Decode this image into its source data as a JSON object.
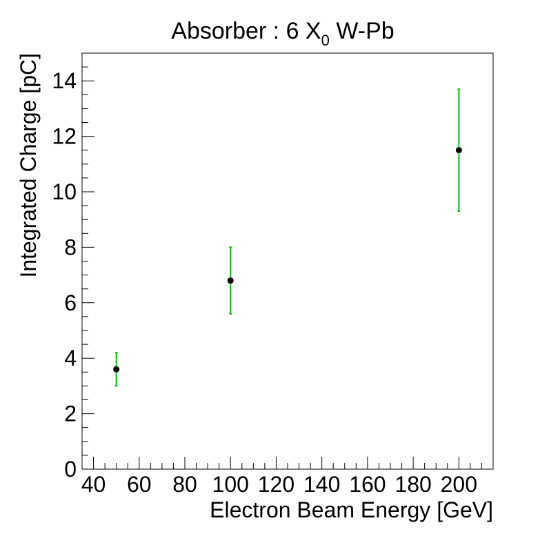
{
  "chart_data": {
    "type": "scatter",
    "title": {
      "main": "Absorber : 6 X",
      "subscript": "0",
      "suffix": " W-Pb"
    },
    "xlabel": "Electron Beam Energy [GeV]",
    "ylabel": "Integrated Charge [pC]",
    "xlim": [
      35,
      215
    ],
    "ylim": [
      0,
      15
    ],
    "x_ticks": [
      40,
      60,
      80,
      100,
      120,
      140,
      160,
      180,
      200
    ],
    "y_ticks": [
      0,
      2,
      4,
      6,
      8,
      10,
      12,
      14
    ],
    "grid": false,
    "series": [
      {
        "points": [
          {
            "x": 50,
            "y": 3.6,
            "y_err_low": 3.0,
            "y_err_high": 4.2
          },
          {
            "x": 100,
            "y": 6.8,
            "y_err_low": 5.6,
            "y_err_high": 8.0
          },
          {
            "x": 200,
            "y": 11.5,
            "y_err_low": 9.3,
            "y_err_high": 13.7
          }
        ]
      }
    ],
    "colors": {
      "marker": "#000000",
      "error_bar": "#00c000",
      "axis": "#000000",
      "background": "#ffffff"
    }
  }
}
